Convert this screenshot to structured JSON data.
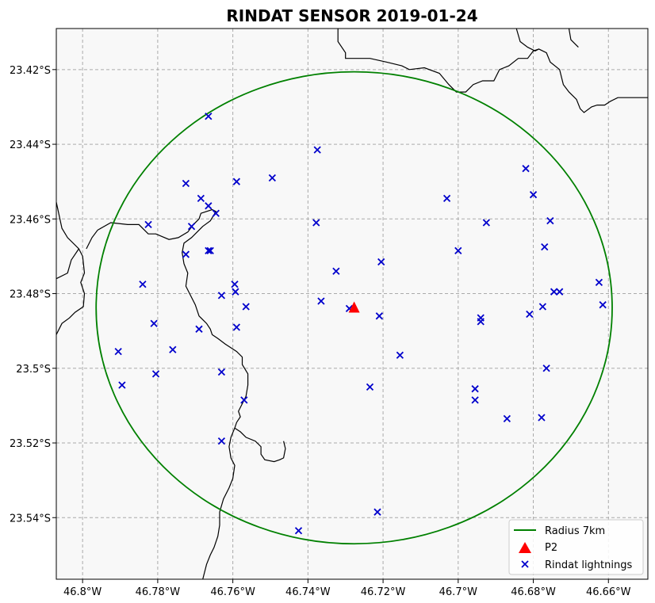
{
  "chart_data": {
    "type": "scatter",
    "title": "RINDAT SENSOR 2019-01-24",
    "xlim": [
      -46.807,
      -46.6495
    ],
    "ylim": [
      -23.5565,
      -23.409
    ],
    "x_ticks": [
      {
        "value": -46.8,
        "label": "46.8°W"
      },
      {
        "value": -46.78,
        "label": "46.78°W"
      },
      {
        "value": -46.76,
        "label": "46.76°W"
      },
      {
        "value": -46.74,
        "label": "46.74°W"
      },
      {
        "value": -46.72,
        "label": "46.72°W"
      },
      {
        "value": -46.7,
        "label": "46.7°W"
      },
      {
        "value": -46.68,
        "label": "46.68°W"
      },
      {
        "value": -46.66,
        "label": "46.66°W"
      }
    ],
    "y_ticks": [
      {
        "value": -23.42,
        "label": "23.42°S"
      },
      {
        "value": -23.44,
        "label": "23.44°S"
      },
      {
        "value": -23.46,
        "label": "23.46°S"
      },
      {
        "value": -23.48,
        "label": "23.48°S"
      },
      {
        "value": -23.5,
        "label": "23.5°S"
      },
      {
        "value": -23.52,
        "label": "23.52°S"
      },
      {
        "value": -23.54,
        "label": "23.54°S"
      }
    ],
    "grid": true,
    "legend_position": "lower-right",
    "circle": {
      "name": "Radius 7km",
      "center": [
        -46.7277,
        -23.4838
      ],
      "rx": 0.0687,
      "ry": 0.0632,
      "color": "#008000"
    },
    "station": {
      "name": "P2",
      "x": -46.7277,
      "y": -23.4838,
      "color": "#ff0000"
    },
    "lightnings": {
      "name": "Rindat lightnings",
      "color": "#0000cc",
      "points": [
        [
          -46.7665,
          -23.4325
        ],
        [
          -46.7375,
          -23.4415
        ],
        [
          -46.7495,
          -23.449
        ],
        [
          -46.7725,
          -23.4505
        ],
        [
          -46.759,
          -23.45
        ],
        [
          -46.7685,
          -23.4545
        ],
        [
          -46.7665,
          -23.4565
        ],
        [
          -46.7645,
          -23.4585
        ],
        [
          -46.7825,
          -23.4615
        ],
        [
          -46.771,
          -23.462
        ],
        [
          -46.7378,
          -23.461
        ],
        [
          -46.766,
          -23.4685
        ],
        [
          -46.7665,
          -23.4685
        ],
        [
          -46.7725,
          -23.4695
        ],
        [
          -46.7205,
          -23.4715
        ],
        [
          -46.7325,
          -23.474
        ],
        [
          -46.784,
          -23.4775
        ],
        [
          -46.7595,
          -23.4775
        ],
        [
          -46.7593,
          -23.4795
        ],
        [
          -46.763,
          -23.4805
        ],
        [
          -46.7365,
          -23.482
        ],
        [
          -46.7565,
          -23.4835
        ],
        [
          -46.729,
          -23.484
        ],
        [
          -46.721,
          -23.486
        ],
        [
          -46.781,
          -23.488
        ],
        [
          -46.759,
          -23.489
        ],
        [
          -46.769,
          -23.4895
        ],
        [
          -46.776,
          -23.495
        ],
        [
          -46.7905,
          -23.4955
        ],
        [
          -46.7155,
          -23.4965
        ],
        [
          -46.7805,
          -23.5015
        ],
        [
          -46.763,
          -23.501
        ],
        [
          -46.7895,
          -23.5045
        ],
        [
          -46.7235,
          -23.505
        ],
        [
          -46.757,
          -23.5085
        ],
        [
          -46.763,
          -23.5195
        ],
        [
          -46.7215,
          -23.5385
        ],
        [
          -46.7425,
          -23.5435
        ],
        [
          -46.703,
          -23.4545
        ],
        [
          -46.682,
          -23.4465
        ],
        [
          -46.68,
          -23.4535
        ],
        [
          -46.6925,
          -23.461
        ],
        [
          -46.6755,
          -23.4605
        ],
        [
          -46.7,
          -23.4685
        ],
        [
          -46.677,
          -23.4675
        ],
        [
          -46.6625,
          -23.477
        ],
        [
          -46.6745,
          -23.4795
        ],
        [
          -46.673,
          -23.4795
        ],
        [
          -46.6775,
          -23.4835
        ],
        [
          -46.6615,
          -23.483
        ],
        [
          -46.681,
          -23.4855
        ],
        [
          -46.694,
          -23.4865
        ],
        [
          -46.694,
          -23.4875
        ],
        [
          -46.6765,
          -23.5
        ],
        [
          -46.6955,
          -23.5055
        ],
        [
          -46.6955,
          -23.5085
        ],
        [
          -46.687,
          -23.5135
        ],
        [
          -46.6778,
          -23.5132
        ]
      ]
    },
    "coastlines": [
      [
        [
          -46.807,
          -23.4555
        ],
        [
          -46.8055,
          -23.4625
        ],
        [
          -46.804,
          -23.465
        ],
        [
          -46.801,
          -23.468
        ],
        [
          -46.8,
          -23.47
        ],
        [
          -46.7995,
          -23.4745
        ],
        [
          -46.8005,
          -23.477
        ],
        [
          -46.7995,
          -23.48
        ],
        [
          -46.7998,
          -23.4835
        ],
        [
          -46.802,
          -23.485
        ],
        [
          -46.8035,
          -23.4865
        ],
        [
          -46.8055,
          -23.488
        ],
        [
          -46.807,
          -23.491
        ]
      ],
      [
        [
          -46.807,
          -23.476
        ],
        [
          -46.804,
          -23.4745
        ],
        [
          -46.803,
          -23.471
        ],
        [
          -46.801,
          -23.468
        ]
      ],
      [
        [
          -46.799,
          -23.468
        ],
        [
          -46.7975,
          -23.465
        ],
        [
          -46.796,
          -23.463
        ],
        [
          -46.7925,
          -23.461
        ],
        [
          -46.788,
          -23.4615
        ],
        [
          -46.785,
          -23.4615
        ],
        [
          -46.7825,
          -23.464
        ],
        [
          -46.7805,
          -23.464
        ],
        [
          -46.777,
          -23.4655
        ],
        [
          -46.7745,
          -23.465
        ],
        [
          -46.772,
          -23.4635
        ],
        [
          -46.7705,
          -23.4615
        ],
        [
          -46.769,
          -23.46
        ],
        [
          -46.7685,
          -23.4585
        ],
        [
          -46.7655,
          -23.4575
        ],
        [
          -46.7645,
          -23.458
        ],
        [
          -46.766,
          -23.4605
        ],
        [
          -46.768,
          -23.462
        ],
        [
          -46.771,
          -23.465
        ],
        [
          -46.773,
          -23.4665
        ],
        [
          -46.7735,
          -23.469
        ],
        [
          -46.773,
          -23.472
        ],
        [
          -46.772,
          -23.4745
        ],
        [
          -46.7725,
          -23.478
        ],
        [
          -46.7715,
          -23.48
        ],
        [
          -46.77,
          -23.483
        ],
        [
          -46.769,
          -23.486
        ],
        [
          -46.767,
          -23.488
        ],
        [
          -46.766,
          -23.4895
        ],
        [
          -46.7655,
          -23.491
        ],
        [
          -46.764,
          -23.492
        ],
        [
          -46.762,
          -23.4935
        ],
        [
          -46.7605,
          -23.4945
        ],
        [
          -46.759,
          -23.4955
        ],
        [
          -46.7575,
          -23.497
        ],
        [
          -46.7575,
          -23.499
        ],
        [
          -46.756,
          -23.5015
        ],
        [
          -46.756,
          -23.5045
        ],
        [
          -46.7565,
          -23.5075
        ],
        [
          -46.7575,
          -23.5095
        ],
        [
          -46.7585,
          -23.5115
        ],
        [
          -46.758,
          -23.513
        ],
        [
          -46.759,
          -23.5145
        ],
        [
          -46.7595,
          -23.516
        ],
        [
          -46.758,
          -23.517
        ],
        [
          -46.7565,
          -23.5185
        ],
        [
          -46.754,
          -23.5195
        ],
        [
          -46.7525,
          -23.521
        ],
        [
          -46.7525,
          -23.523
        ],
        [
          -46.7515,
          -23.5245
        ],
        [
          -46.749,
          -23.525
        ],
        [
          -46.7475,
          -23.5245
        ],
        [
          -46.7465,
          -23.524
        ],
        [
          -46.746,
          -23.5215
        ],
        [
          -46.7465,
          -23.5195
        ]
      ],
      [
        [
          -46.7595,
          -23.516
        ],
        [
          -46.7605,
          -23.5185
        ],
        [
          -46.761,
          -23.521
        ],
        [
          -46.7605,
          -23.524
        ],
        [
          -46.7595,
          -23.526
        ],
        [
          -46.76,
          -23.5295
        ],
        [
          -46.761,
          -23.532
        ],
        [
          -46.7625,
          -23.535
        ],
        [
          -46.7635,
          -23.5385
        ],
        [
          -46.7635,
          -23.542
        ],
        [
          -46.764,
          -23.545
        ],
        [
          -46.765,
          -23.548
        ],
        [
          -46.766,
          -23.55
        ],
        [
          -46.767,
          -23.5525
        ],
        [
          -46.768,
          -23.5565
        ]
      ],
      [
        [
          -46.732,
          -23.409
        ],
        [
          -46.732,
          -23.4125
        ],
        [
          -46.73,
          -23.4155
        ],
        [
          -46.73,
          -23.417
        ],
        [
          -46.7235,
          -23.417
        ],
        [
          -46.719,
          -23.418
        ],
        [
          -46.715,
          -23.419
        ],
        [
          -46.713,
          -23.42
        ],
        [
          -46.709,
          -23.4195
        ],
        [
          -46.705,
          -23.421
        ],
        [
          -46.7025,
          -23.424
        ],
        [
          -46.7005,
          -23.426
        ],
        [
          -46.698,
          -23.426
        ],
        [
          -46.696,
          -23.424
        ],
        [
          -46.6935,
          -23.423
        ],
        [
          -46.6905,
          -23.423
        ],
        [
          -46.689,
          -23.42
        ],
        [
          -46.6865,
          -23.419
        ],
        [
          -46.684,
          -23.417
        ],
        [
          -46.6815,
          -23.417
        ],
        [
          -46.68,
          -23.415
        ],
        [
          -46.6785,
          -23.4145
        ],
        [
          -46.6765,
          -23.4155
        ],
        [
          -46.6755,
          -23.418
        ],
        [
          -46.673,
          -23.42
        ],
        [
          -46.672,
          -23.424
        ],
        [
          -46.6705,
          -23.426
        ],
        [
          -46.6685,
          -23.428
        ],
        [
          -46.6675,
          -23.4305
        ],
        [
          -46.6665,
          -23.4315
        ],
        [
          -46.6645,
          -23.43
        ],
        [
          -46.663,
          -23.4295
        ],
        [
          -46.661,
          -23.4295
        ],
        [
          -46.6595,
          -23.4285
        ],
        [
          -46.6575,
          -23.4275
        ],
        [
          -46.6555,
          -23.4275
        ],
        [
          -46.653,
          -23.4275
        ],
        [
          -46.6495,
          -23.4275
        ]
      ],
      [
        [
          -46.6845,
          -23.409
        ],
        [
          -46.6835,
          -23.4125
        ],
        [
          -46.6815,
          -23.414
        ],
        [
          -46.6795,
          -23.415
        ],
        [
          -46.6785,
          -23.4145
        ]
      ],
      [
        [
          -46.6705,
          -23.409
        ],
        [
          -46.67,
          -23.412
        ],
        [
          -46.669,
          -23.413
        ],
        [
          -46.668,
          -23.414
        ]
      ]
    ]
  }
}
